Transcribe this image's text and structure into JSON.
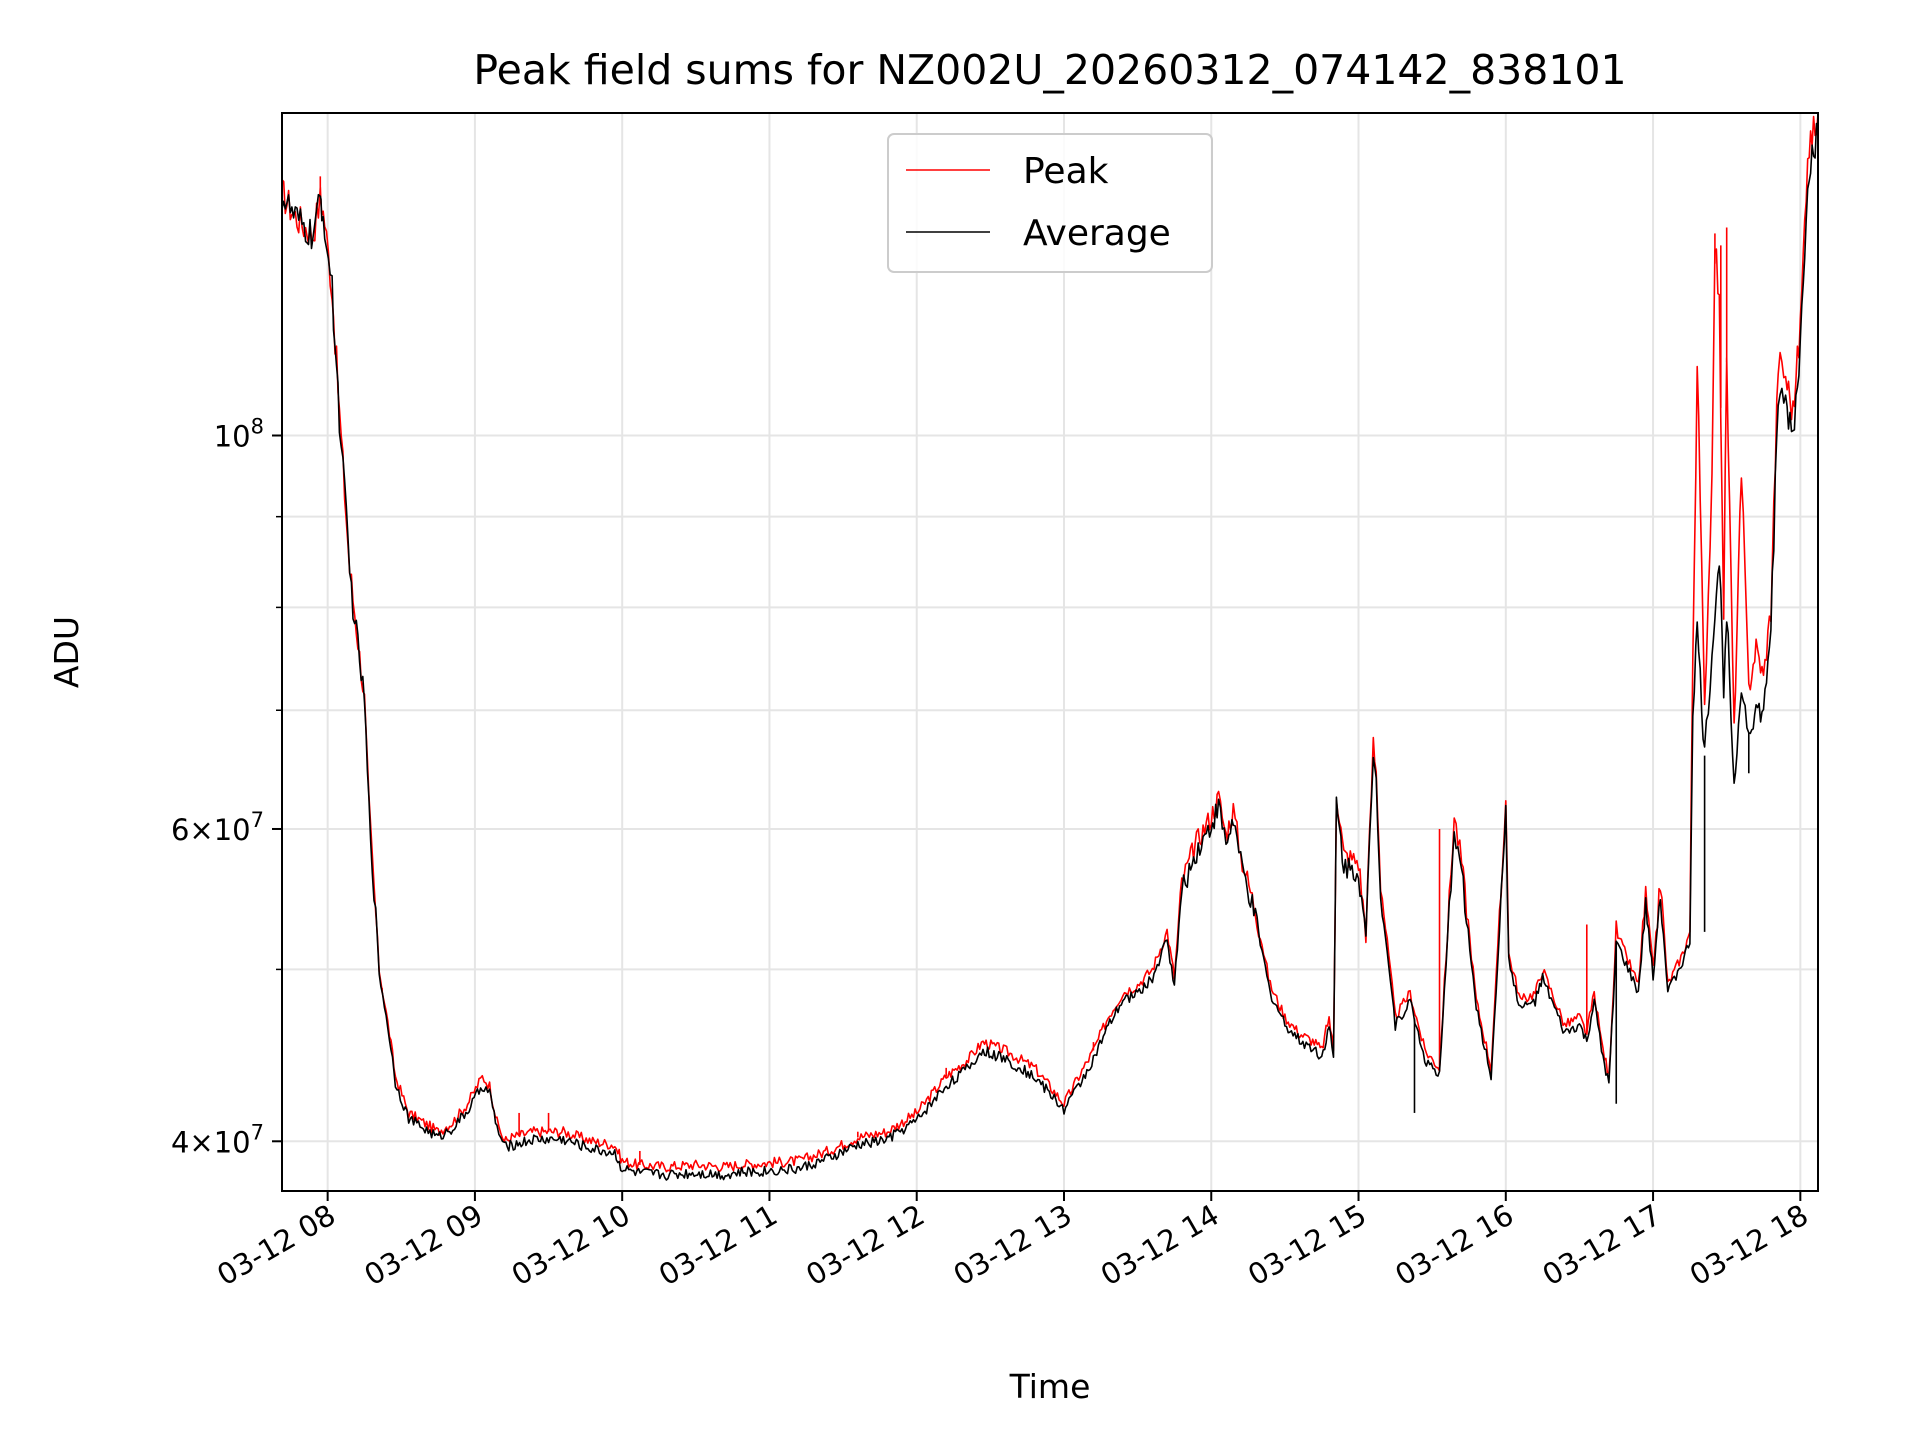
{
  "chart_data": {
    "type": "line",
    "title": "Peak field sums for NZ002U_20260312_074142_838101",
    "xlabel": "Time",
    "ylabel": "ADU",
    "yscale": "log",
    "grid": true,
    "legend_position": "upper center",
    "x_unit": "hours since 03-12 00:00",
    "xlim": [
      7.69,
      18.12
    ],
    "ylim": [
      37500000,
      152000000
    ],
    "x_ticks": [
      {
        "value": 8,
        "label": "03-12 08"
      },
      {
        "value": 9,
        "label": "03-12 09"
      },
      {
        "value": 10,
        "label": "03-12 10"
      },
      {
        "value": 11,
        "label": "03-12 11"
      },
      {
        "value": 12,
        "label": "03-12 12"
      },
      {
        "value": 13,
        "label": "03-12 13"
      },
      {
        "value": 14,
        "label": "03-12 14"
      },
      {
        "value": 15,
        "label": "03-12 15"
      },
      {
        "value": 16,
        "label": "03-12 16"
      },
      {
        "value": 17,
        "label": "03-12 17"
      },
      {
        "value": 18,
        "label": "03-12 18"
      }
    ],
    "y_major_ticks": [
      {
        "value": 100000000,
        "base": "10",
        "exp": "8",
        "mant": ""
      },
      {
        "value": 60000000,
        "base": "10",
        "exp": "7",
        "mant": "6"
      },
      {
        "value": 40000000,
        "base": "10",
        "exp": "7",
        "mant": "4"
      }
    ],
    "y_minor_ticks": [
      50000000,
      70000000,
      80000000,
      90000000
    ],
    "series": [
      {
        "name": "Peak",
        "color": "#ff0000",
        "x": [
          7.69,
          7.78,
          7.85,
          7.9,
          7.95,
          7.96,
          7.98,
          8.03,
          8.08,
          8.15,
          8.25,
          8.28,
          8.35,
          8.42,
          8.46,
          8.55,
          8.65,
          8.75,
          8.85,
          8.95,
          9.05,
          9.1,
          9.15,
          9.2,
          9.25,
          9.4,
          9.6,
          9.8,
          9.95,
          10.0,
          10.1,
          10.3,
          10.5,
          10.7,
          10.8,
          11.0,
          11.2,
          11.4,
          11.6,
          11.8,
          12.0,
          12.2,
          12.35,
          12.45,
          12.6,
          12.8,
          12.9,
          13.0,
          13.1,
          13.2,
          13.3,
          13.4,
          13.5,
          13.6,
          13.7,
          13.75,
          13.8,
          13.85,
          13.9,
          14.0,
          14.05,
          14.1,
          14.15,
          14.2,
          14.3,
          14.4,
          14.5,
          14.6,
          14.7,
          14.75,
          14.8,
          14.83,
          14.85,
          14.9,
          15.0,
          15.05,
          15.1,
          15.12,
          15.15,
          15.25,
          15.35,
          15.45,
          15.55,
          15.65,
          15.7,
          15.8,
          15.9,
          15.98,
          16.0,
          16.02,
          16.1,
          16.2,
          16.25,
          16.4,
          16.5,
          16.55,
          16.6,
          16.65,
          16.7,
          16.75,
          16.9,
          16.95,
          17.0,
          17.05,
          17.1,
          17.2,
          17.25,
          17.27,
          17.3,
          17.35,
          17.4,
          17.42,
          17.45,
          17.48,
          17.5,
          17.55,
          17.6,
          17.65,
          17.7,
          17.75,
          17.8,
          17.85,
          17.9,
          17.95,
          18.0,
          18.05,
          18.1,
          18.12
        ],
        "values": [
          137000000,
          133000000,
          131000000,
          130000000,
          136000000,
          135000000,
          132000000,
          121000000,
          103000000,
          84000000,
          71000000,
          62000000,
          50000000,
          46000000,
          43500000,
          41500000,
          41000000,
          40500000,
          41000000,
          42000000,
          43500000,
          43000000,
          41000000,
          40000000,
          40200000,
          40500000,
          40500000,
          40000000,
          39800000,
          39000000,
          38800000,
          38700000,
          38800000,
          38700000,
          38800000,
          38900000,
          39000000,
          39500000,
          40200000,
          40500000,
          41500000,
          43500000,
          44500000,
          45500000,
          45000000,
          44000000,
          43000000,
          42000000,
          43500000,
          45000000,
          47000000,
          48500000,
          49000000,
          50000000,
          52500000,
          49500000,
          56000000,
          57500000,
          59000000,
          61000000,
          62500000,
          59500000,
          61500000,
          58000000,
          54000000,
          49000000,
          47000000,
          46000000,
          45500000,
          45000000,
          47000000,
          45000000,
          63000000,
          58000000,
          57500000,
          52500000,
          67000000,
          64500000,
          56000000,
          47000000,
          48500000,
          45000000,
          44000000,
          61000000,
          57500000,
          48000000,
          44000000,
          57500000,
          63000000,
          51000000,
          48000000,
          48500000,
          50000000,
          46500000,
          47000000,
          46000000,
          48500000,
          45500000,
          43500000,
          52500000,
          49000000,
          55000000,
          50000000,
          56000000,
          49000000,
          51000000,
          52500000,
          75000000,
          110000000,
          70000000,
          95000000,
          130000000,
          118000000,
          80000000,
          110000000,
          68000000,
          95000000,
          72000000,
          76000000,
          73000000,
          80000000,
          110000000,
          108000000,
          103000000,
          115000000,
          145000000,
          149000000,
          152000000
        ],
        "spikes": [
          {
            "x": 7.95,
            "y": 140000000
          },
          {
            "x": 8.37,
            "y": 48500000
          },
          {
            "x": 9.3,
            "y": 41500000
          },
          {
            "x": 9.5,
            "y": 41500000
          },
          {
            "x": 10.12,
            "y": 39500000
          },
          {
            "x": 11.6,
            "y": 40500000
          },
          {
            "x": 12.2,
            "y": 44000000
          },
          {
            "x": 12.5,
            "y": 45500000
          },
          {
            "x": 13.2,
            "y": 45500000
          },
          {
            "x": 15.55,
            "y": 60000000
          },
          {
            "x": 16.55,
            "y": 53000000
          },
          {
            "x": 17.3,
            "y": 110000000
          },
          {
            "x": 17.42,
            "y": 125000000
          },
          {
            "x": 17.46,
            "y": 128000000
          },
          {
            "x": 17.5,
            "y": 131000000
          },
          {
            "x": 17.85,
            "y": 110000000
          }
        ]
      },
      {
        "name": "Average",
        "color": "#000000",
        "x": [
          7.69,
          7.78,
          7.85,
          7.9,
          7.95,
          7.96,
          7.98,
          8.03,
          8.08,
          8.15,
          8.25,
          8.28,
          8.35,
          8.42,
          8.46,
          8.55,
          8.65,
          8.75,
          8.85,
          8.95,
          9.05,
          9.1,
          9.15,
          9.2,
          9.25,
          9.4,
          9.6,
          9.8,
          9.95,
          10.0,
          10.1,
          10.3,
          10.5,
          10.7,
          10.8,
          11.0,
          11.2,
          11.4,
          11.6,
          11.8,
          12.0,
          12.2,
          12.35,
          12.45,
          12.6,
          12.8,
          12.9,
          13.0,
          13.1,
          13.2,
          13.3,
          13.4,
          13.5,
          13.6,
          13.7,
          13.75,
          13.8,
          13.85,
          13.9,
          14.0,
          14.05,
          14.1,
          14.15,
          14.2,
          14.3,
          14.4,
          14.5,
          14.6,
          14.7,
          14.75,
          14.8,
          14.83,
          14.85,
          14.9,
          15.0,
          15.05,
          15.1,
          15.12,
          15.15,
          15.25,
          15.35,
          15.45,
          15.55,
          15.65,
          15.7,
          15.8,
          15.9,
          15.98,
          16.0,
          16.02,
          16.1,
          16.2,
          16.25,
          16.4,
          16.5,
          16.55,
          16.6,
          16.65,
          16.7,
          16.75,
          16.9,
          16.95,
          17.0,
          17.05,
          17.1,
          17.2,
          17.25,
          17.27,
          17.3,
          17.35,
          17.4,
          17.42,
          17.45,
          17.48,
          17.5,
          17.55,
          17.6,
          17.65,
          17.7,
          17.75,
          17.8,
          17.85,
          17.9,
          17.95,
          18.0,
          18.05,
          18.1,
          18.12
        ],
        "values": [
          136500000,
          132500000,
          130500000,
          129500000,
          135500000,
          134500000,
          131500000,
          120500000,
          102500000,
          83500000,
          70800000,
          61800000,
          49800000,
          45800000,
          43200000,
          41200000,
          40700000,
          40200000,
          40700000,
          41600000,
          43000000,
          42600000,
          40700000,
          39700000,
          39800000,
          40100000,
          40100000,
          39600000,
          39400000,
          38600000,
          38400000,
          38300000,
          38400000,
          38300000,
          38400000,
          38500000,
          38600000,
          39100000,
          39800000,
          40100000,
          41100000,
          43000000,
          44000000,
          45000000,
          44500000,
          43500000,
          42600000,
          41700000,
          43000000,
          44500000,
          46400000,
          48000000,
          48500000,
          49400000,
          52000000,
          49000000,
          55300000,
          56800000,
          58300000,
          60300000,
          61800000,
          58800000,
          60800000,
          57400000,
          53400000,
          48500000,
          46600000,
          45600000,
          45100000,
          44600000,
          46500000,
          44500000,
          62000000,
          57200000,
          56800000,
          52000000,
          66500000,
          63800000,
          55400000,
          46500000,
          48000000,
          44500000,
          43500000,
          60200000,
          56800000,
          47500000,
          43500000,
          56800000,
          62300000,
          50500000,
          47500000,
          48000000,
          49400000,
          46000000,
          46500000,
          45500000,
          48000000,
          45000000,
          43000000,
          51800000,
          48500000,
          54400000,
          49500000,
          55300000,
          48500000,
          50500000,
          51800000,
          70000000,
          78000000,
          66000000,
          75000000,
          80000000,
          85000000,
          72000000,
          80000000,
          64000000,
          72000000,
          68000000,
          70000000,
          69500000,
          78000000,
          105000000,
          104000000,
          100000000,
          112000000,
          140000000,
          146000000,
          148000000
        ],
        "spikes": [
          {
            "x": 15.38,
            "y": 41500000
          },
          {
            "x": 16.75,
            "y": 42000000
          },
          {
            "x": 17.35,
            "y": 52500000
          },
          {
            "x": 17.65,
            "y": 64500000
          }
        ]
      }
    ]
  }
}
